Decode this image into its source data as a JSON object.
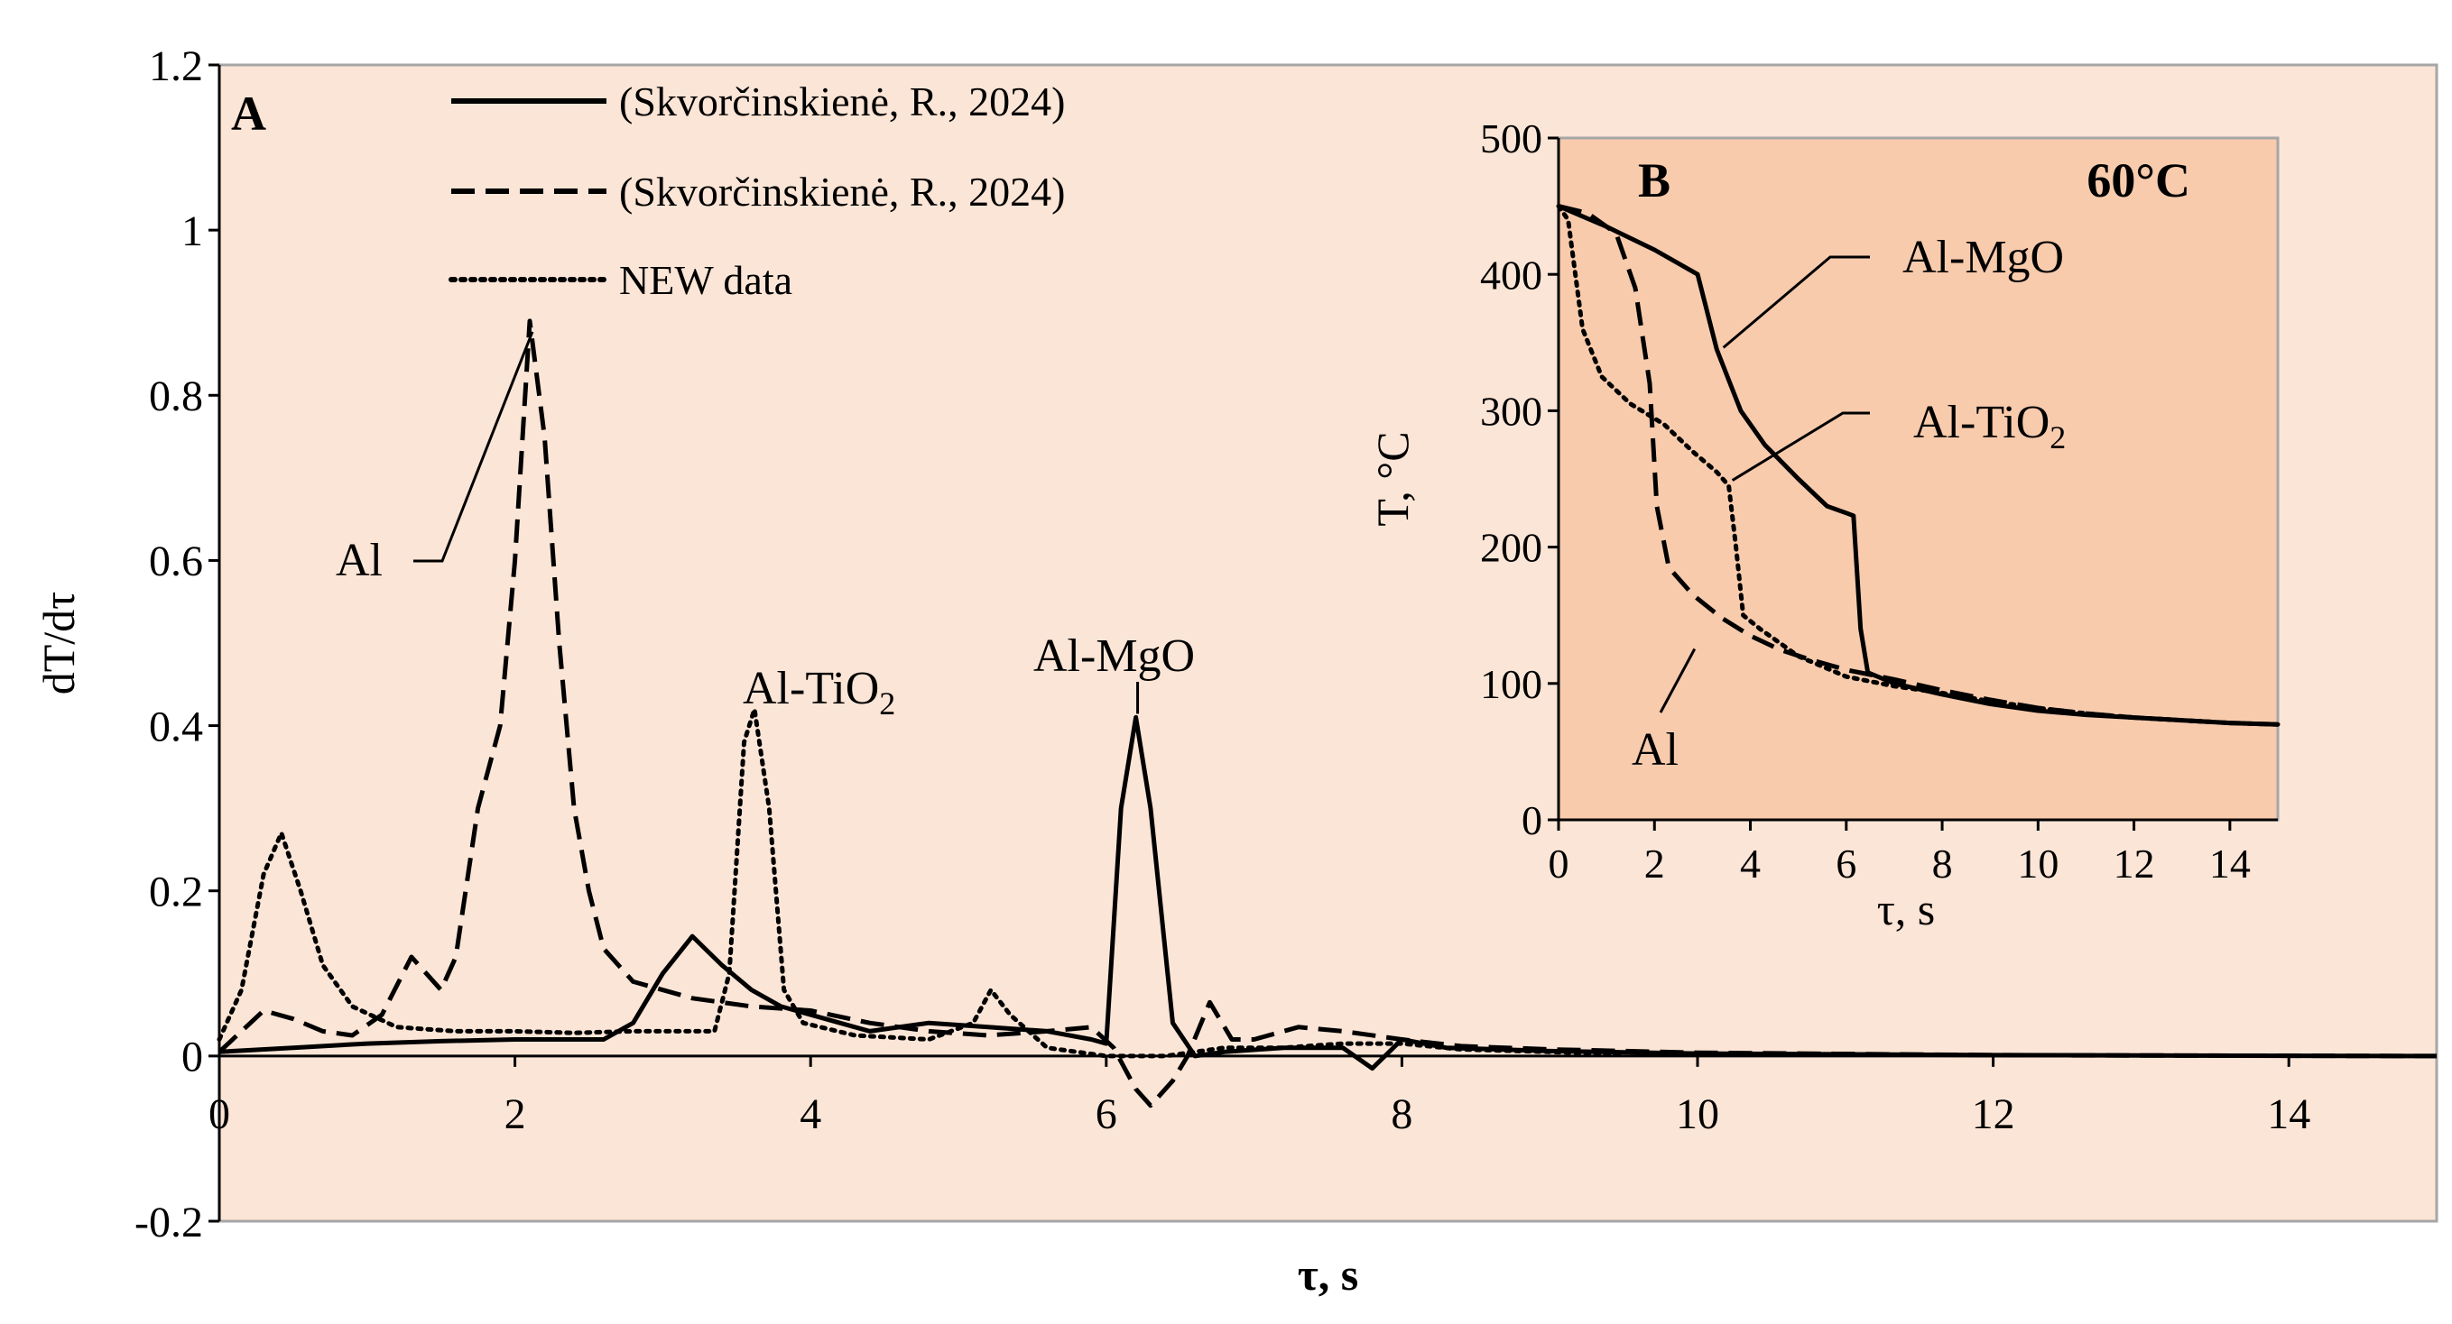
{
  "chart_data": [
    {
      "panel_label": "A",
      "type": "line",
      "title": "",
      "xlabel": "τ, s",
      "ylabel": "dT/dτ",
      "xlim": [
        0,
        15
      ],
      "ylim": [
        -0.2,
        1.2
      ],
      "xticks": [
        0,
        2,
        4,
        6,
        8,
        10,
        12,
        14
      ],
      "xtick_labels": [
        "0",
        "2",
        "4",
        "6",
        "8",
        "10",
        "12",
        "14"
      ],
      "yticks": [
        -0.2,
        0,
        0.2,
        0.4,
        0.6,
        0.8,
        1,
        1.2
      ],
      "ytick_labels": [
        "-0.2",
        "0",
        "0.2",
        "0.4",
        "0.6",
        "0.8",
        "1",
        "1.2"
      ],
      "grid": false,
      "legend_position": "top-center",
      "series": [
        {
          "name": "(Skvorčinskienė, R., 2024)",
          "style": "solid",
          "material": "Al-MgO",
          "points": [
            [
              0,
              0.005
            ],
            [
              0.5,
              0.01
            ],
            [
              1,
              0.015
            ],
            [
              1.5,
              0.018
            ],
            [
              2,
              0.02
            ],
            [
              2.3,
              0.02
            ],
            [
              2.6,
              0.02
            ],
            [
              2.8,
              0.04
            ],
            [
              3.0,
              0.1
            ],
            [
              3.2,
              0.145
            ],
            [
              3.4,
              0.11
            ],
            [
              3.6,
              0.08
            ],
            [
              3.8,
              0.06
            ],
            [
              4.1,
              0.045
            ],
            [
              4.4,
              0.03
            ],
            [
              4.8,
              0.04
            ],
            [
              5.2,
              0.035
            ],
            [
              5.6,
              0.03
            ],
            [
              5.9,
              0.02
            ],
            [
              6.0,
              0.015
            ],
            [
              6.1,
              0.3
            ],
            [
              6.2,
              0.41
            ],
            [
              6.3,
              0.3
            ],
            [
              6.45,
              0.04
            ],
            [
              6.6,
              0.0
            ],
            [
              6.8,
              0.005
            ],
            [
              7.2,
              0.01
            ],
            [
              7.6,
              0.01
            ],
            [
              7.8,
              -0.015
            ],
            [
              8.0,
              0.02
            ],
            [
              8.3,
              0.01
            ],
            [
              9,
              0.006
            ],
            [
              10,
              0.003
            ],
            [
              12,
              0.001
            ],
            [
              15,
              0.0
            ]
          ]
        },
        {
          "name": "(Skvorčinskienė, R., 2024)",
          "style": "dashed",
          "material": "Al",
          "points": [
            [
              0,
              0.005
            ],
            [
              0.15,
              0.03
            ],
            [
              0.3,
              0.055
            ],
            [
              0.5,
              0.045
            ],
            [
              0.7,
              0.03
            ],
            [
              0.9,
              0.025
            ],
            [
              1.1,
              0.05
            ],
            [
              1.3,
              0.12
            ],
            [
              1.5,
              0.08
            ],
            [
              1.6,
              0.12
            ],
            [
              1.75,
              0.3
            ],
            [
              1.9,
              0.4
            ],
            [
              2.0,
              0.6
            ],
            [
              2.1,
              0.89
            ],
            [
              2.2,
              0.75
            ],
            [
              2.3,
              0.5
            ],
            [
              2.4,
              0.3
            ],
            [
              2.5,
              0.2
            ],
            [
              2.6,
              0.13
            ],
            [
              2.8,
              0.09
            ],
            [
              3.2,
              0.07
            ],
            [
              3.6,
              0.06
            ],
            [
              4.0,
              0.055
            ],
            [
              4.4,
              0.04
            ],
            [
              4.8,
              0.03
            ],
            [
              5.2,
              0.025
            ],
            [
              5.6,
              0.03
            ],
            [
              5.9,
              0.035
            ],
            [
              6.05,
              0.01
            ],
            [
              6.2,
              -0.04
            ],
            [
              6.3,
              -0.06
            ],
            [
              6.45,
              -0.03
            ],
            [
              6.55,
              0.0
            ],
            [
              6.7,
              0.065
            ],
            [
              6.85,
              0.02
            ],
            [
              7.0,
              0.02
            ],
            [
              7.3,
              0.035
            ],
            [
              7.6,
              0.03
            ],
            [
              8.0,
              0.02
            ],
            [
              8.4,
              0.012
            ],
            [
              9,
              0.008
            ],
            [
              10,
              0.004
            ],
            [
              12,
              0.001
            ],
            [
              15,
              0.0
            ]
          ]
        },
        {
          "name": "NEW data",
          "style": "dotted",
          "material": "Al-TiO2",
          "points": [
            [
              0,
              0.02
            ],
            [
              0.15,
              0.08
            ],
            [
              0.3,
              0.22
            ],
            [
              0.42,
              0.27
            ],
            [
              0.55,
              0.2
            ],
            [
              0.7,
              0.11
            ],
            [
              0.9,
              0.06
            ],
            [
              1.2,
              0.035
            ],
            [
              1.6,
              0.03
            ],
            [
              2.0,
              0.03
            ],
            [
              2.4,
              0.028
            ],
            [
              2.8,
              0.03
            ],
            [
              3.1,
              0.03
            ],
            [
              3.35,
              0.03
            ],
            [
              3.45,
              0.1
            ],
            [
              3.55,
              0.38
            ],
            [
              3.62,
              0.42
            ],
            [
              3.72,
              0.3
            ],
            [
              3.82,
              0.08
            ],
            [
              3.95,
              0.04
            ],
            [
              4.3,
              0.025
            ],
            [
              4.8,
              0.02
            ],
            [
              5.1,
              0.04
            ],
            [
              5.22,
              0.08
            ],
            [
              5.35,
              0.05
            ],
            [
              5.6,
              0.01
            ],
            [
              6.0,
              0.0
            ],
            [
              6.4,
              0.0
            ],
            [
              6.8,
              0.01
            ],
            [
              7.2,
              0.01
            ],
            [
              7.6,
              0.015
            ],
            [
              8.0,
              0.015
            ],
            [
              8.4,
              0.008
            ],
            [
              9,
              0.005
            ],
            [
              9.5,
              0.002
            ]
          ]
        }
      ],
      "annotations": [
        {
          "text": "Al",
          "target_x": 2.1,
          "target_y": 0.89
        },
        {
          "text": "Al-TiO",
          "subscript": "2",
          "target_x": 3.62,
          "target_y": 0.42
        },
        {
          "text": "Al-MgO",
          "target_x": 6.2,
          "target_y": 0.41
        }
      ]
    },
    {
      "panel_label": "B",
      "type": "line",
      "title": "60°C",
      "xlabel": "τ, s",
      "ylabel": "T, °C",
      "xlim": [
        0,
        15
      ],
      "ylim": [
        0,
        500
      ],
      "xticks": [
        0,
        2,
        4,
        6,
        8,
        10,
        12,
        14
      ],
      "xtick_labels": [
        "0",
        "2",
        "4",
        "6",
        "8",
        "10",
        "12",
        "14"
      ],
      "yticks": [
        0,
        100,
        200,
        300,
        400,
        500
      ],
      "ytick_labels": [
        "0",
        "100",
        "200",
        "300",
        "400",
        "500"
      ],
      "grid": false,
      "series": [
        {
          "name": "Al-MgO",
          "style": "solid",
          "points": [
            [
              0,
              450
            ],
            [
              1,
              435
            ],
            [
              2,
              418
            ],
            [
              2.9,
              400
            ],
            [
              3.3,
              345
            ],
            [
              3.8,
              300
            ],
            [
              4.3,
              275
            ],
            [
              5.0,
              250
            ],
            [
              5.6,
              230
            ],
            [
              6.0,
              225
            ],
            [
              6.15,
              223
            ],
            [
              6.3,
              140
            ],
            [
              6.45,
              108
            ],
            [
              7,
              100
            ],
            [
              8,
              92
            ],
            [
              9,
              85
            ],
            [
              10,
              80
            ],
            [
              11,
              77
            ],
            [
              12,
              75
            ],
            [
              13,
              73
            ],
            [
              14,
              71
            ],
            [
              15,
              70
            ]
          ]
        },
        {
          "name": "Al",
          "style": "dashed",
          "points": [
            [
              0,
              450
            ],
            [
              0.6,
              445
            ],
            [
              1.2,
              430
            ],
            [
              1.6,
              390
            ],
            [
              1.9,
              320
            ],
            [
              2.05,
              230
            ],
            [
              2.3,
              185
            ],
            [
              2.8,
              165
            ],
            [
              3.4,
              148
            ],
            [
              4.0,
              135
            ],
            [
              4.6,
              125
            ],
            [
              5.2,
              118
            ],
            [
              6.0,
              110
            ],
            [
              7,
              103
            ],
            [
              8,
              95
            ],
            [
              9,
              88
            ],
            [
              10,
              82
            ],
            [
              11,
              78
            ],
            [
              12,
              75
            ],
            [
              13,
              73
            ],
            [
              14,
              71
            ],
            [
              15,
              70
            ]
          ]
        },
        {
          "name": "Al-TiO2",
          "style": "dotted",
          "points": [
            [
              0,
              450
            ],
            [
              0.2,
              440
            ],
            [
              0.5,
              360
            ],
            [
              0.9,
              325
            ],
            [
              1.5,
              305
            ],
            [
              2.2,
              290
            ],
            [
              2.8,
              270
            ],
            [
              3.3,
              255
            ],
            [
              3.55,
              245
            ],
            [
              3.7,
              200
            ],
            [
              3.85,
              150
            ],
            [
              4.2,
              140
            ],
            [
              5.0,
              120
            ],
            [
              6.0,
              105
            ],
            [
              7,
              98
            ],
            [
              8,
              93
            ],
            [
              9,
              87
            ],
            [
              10,
              82
            ],
            [
              11,
              78
            ],
            [
              12,
              75
            ],
            [
              13,
              73
            ],
            [
              14,
              71
            ],
            [
              15,
              70
            ]
          ]
        }
      ],
      "annotations": [
        {
          "text": "Al-MgO",
          "target_x": 3.4,
          "target_y": 345
        },
        {
          "text": "Al-TiO",
          "subscript": "2",
          "target_x": 3.55,
          "target_y": 245
        },
        {
          "text": "Al",
          "target_x": 2.8,
          "target_y": 165
        }
      ]
    }
  ],
  "legend": {
    "items": [
      {
        "label": "(Skvorčinskienė, R., 2024)",
        "style": "solid"
      },
      {
        "label": "(Skvorčinskienė, R., 2024)",
        "style": "dashed"
      },
      {
        "label": "NEW data",
        "style": "dotted"
      }
    ]
  },
  "colors": {
    "plot_bg": "#fbe5d6",
    "inset_bg": "#f8cbad",
    "line": "#000000"
  }
}
